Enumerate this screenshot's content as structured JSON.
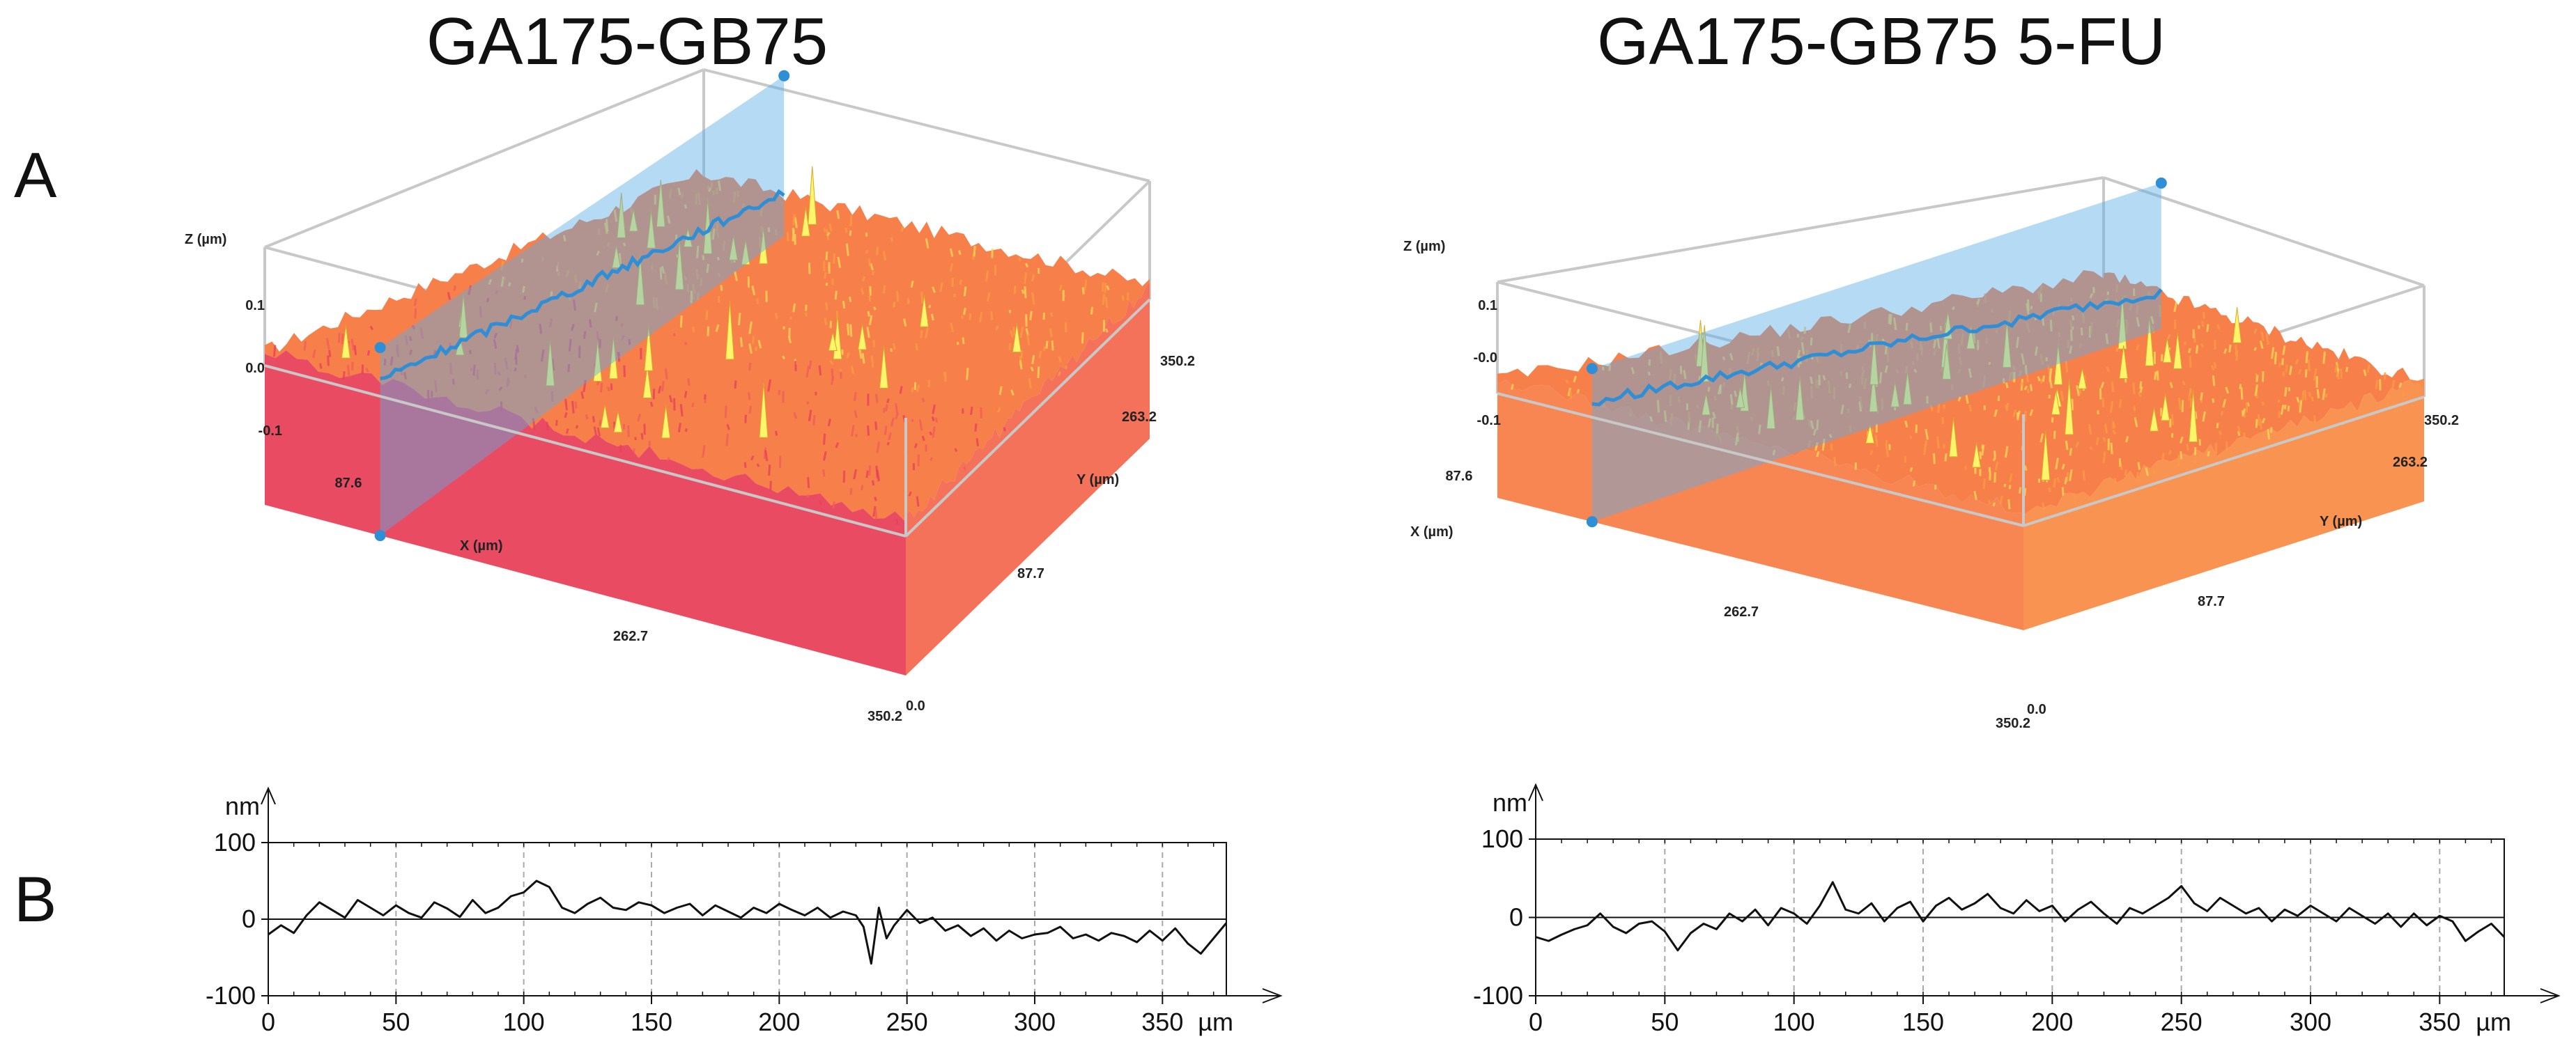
{
  "titles": {
    "left": "GA175-GB75",
    "right": "GA175-GB75 5-FU"
  },
  "panel_labels": {
    "a": "A",
    "b": "B"
  },
  "colors": {
    "surface_low": "#e8425a",
    "surface_mid": "#f77f4a",
    "surface_high": "#ffd456",
    "peak": "#fff56a",
    "plane": "#5aaee6",
    "profile_line": "#2e8fd6",
    "box": "#c8c8c8"
  },
  "chart_data": [
    {
      "type": "surface3d",
      "panel": "A-left",
      "z_label": "Z (µm)",
      "x_label": "X (µm)",
      "y_label": "Y (µm)",
      "z_ticks": [
        "0.1",
        "0.0",
        "-0.1"
      ],
      "x_ticks": [
        "87.6",
        "262.7",
        "350.2"
      ],
      "y_ticks": [
        "350.2",
        "263.2",
        "87.7",
        "0.0"
      ],
      "z_range_um": [
        -0.1,
        0.1
      ],
      "x_range_um": [
        0,
        350.2
      ],
      "y_range_um": [
        0,
        350.2
      ]
    },
    {
      "type": "surface3d",
      "panel": "A-right",
      "z_label": "Z (µm)",
      "x_label": "X (µm)",
      "y_label": "Y (µm)",
      "z_ticks": [
        "0.1",
        "-0.0",
        "-0.1"
      ],
      "x_ticks": [
        "87.6",
        "262.7",
        "350.2"
      ],
      "y_ticks": [
        "350.2",
        "263.2",
        "87.7",
        "0.0"
      ],
      "z_range_um": [
        -0.1,
        0.1
      ],
      "x_range_um": [
        0,
        350.2
      ],
      "y_range_um": [
        0,
        350.2
      ]
    },
    {
      "type": "line",
      "panel": "B-left",
      "ylabel": "nm",
      "xlabel": "µm",
      "xlim": [
        0,
        375
      ],
      "ylim": [
        -100,
        100
      ],
      "x_ticks": [
        "0",
        "50",
        "100",
        "150",
        "200",
        "250",
        "300",
        "350"
      ],
      "y_ticks": [
        "100",
        "0",
        "-100"
      ],
      "x": [
        0,
        5,
        10,
        15,
        20,
        25,
        30,
        35,
        40,
        45,
        50,
        55,
        60,
        65,
        70,
        75,
        80,
        85,
        90,
        95,
        100,
        105,
        110,
        115,
        120,
        125,
        130,
        135,
        140,
        145,
        150,
        155,
        160,
        165,
        170,
        175,
        180,
        185,
        190,
        195,
        200,
        205,
        210,
        215,
        220,
        225,
        230,
        233,
        236,
        239,
        242,
        245,
        250,
        255,
        260,
        265,
        270,
        275,
        280,
        285,
        290,
        295,
        300,
        305,
        310,
        315,
        320,
        325,
        330,
        335,
        340,
        345,
        350,
        355,
        360,
        365,
        370,
        375
      ],
      "values": [
        -20,
        -8,
        -18,
        5,
        22,
        12,
        2,
        25,
        15,
        5,
        18,
        8,
        2,
        22,
        14,
        3,
        25,
        8,
        15,
        30,
        35,
        50,
        42,
        15,
        8,
        20,
        28,
        15,
        12,
        22,
        18,
        8,
        15,
        20,
        5,
        18,
        10,
        2,
        15,
        8,
        20,
        12,
        5,
        15,
        2,
        10,
        5,
        -10,
        -58,
        15,
        -25,
        -8,
        12,
        -5,
        2,
        -15,
        -8,
        -22,
        -12,
        -28,
        -15,
        -25,
        -20,
        -18,
        -10,
        -25,
        -20,
        -28,
        -18,
        -22,
        -30,
        -15,
        -28,
        -12,
        -32,
        -45,
        -25,
        -5
      ]
    },
    {
      "type": "line",
      "panel": "B-right",
      "ylabel": "nm",
      "xlabel": "µm",
      "xlim": [
        0,
        375
      ],
      "ylim": [
        -100,
        100
      ],
      "x_ticks": [
        "0",
        "50",
        "100",
        "150",
        "200",
        "250",
        "300",
        "350"
      ],
      "y_ticks": [
        "100",
        "0",
        "-100"
      ],
      "x": [
        0,
        5,
        10,
        15,
        20,
        25,
        30,
        35,
        40,
        45,
        50,
        55,
        60,
        65,
        70,
        75,
        80,
        85,
        90,
        95,
        100,
        105,
        110,
        115,
        120,
        125,
        130,
        135,
        140,
        145,
        150,
        155,
        160,
        165,
        170,
        175,
        180,
        185,
        190,
        195,
        200,
        205,
        210,
        215,
        220,
        225,
        230,
        235,
        240,
        245,
        250,
        255,
        260,
        265,
        270,
        275,
        280,
        285,
        290,
        295,
        300,
        305,
        310,
        315,
        320,
        325,
        330,
        335,
        340,
        345,
        350,
        355,
        360,
        365,
        370,
        375
      ],
      "values": [
        -25,
        -30,
        -22,
        -15,
        -10,
        5,
        -12,
        -20,
        -8,
        -5,
        -18,
        -42,
        -20,
        -8,
        -15,
        5,
        -5,
        10,
        -10,
        12,
        5,
        -8,
        15,
        45,
        10,
        5,
        18,
        -5,
        12,
        20,
        -5,
        15,
        25,
        10,
        18,
        30,
        12,
        5,
        22,
        8,
        15,
        -5,
        10,
        20,
        5,
        -8,
        12,
        5,
        15,
        25,
        40,
        18,
        8,
        25,
        15,
        5,
        12,
        -5,
        10,
        2,
        15,
        5,
        -5,
        12,
        2,
        -8,
        5,
        -12,
        5,
        -10,
        2,
        -5,
        -30,
        -18,
        -8,
        -25
      ]
    }
  ]
}
